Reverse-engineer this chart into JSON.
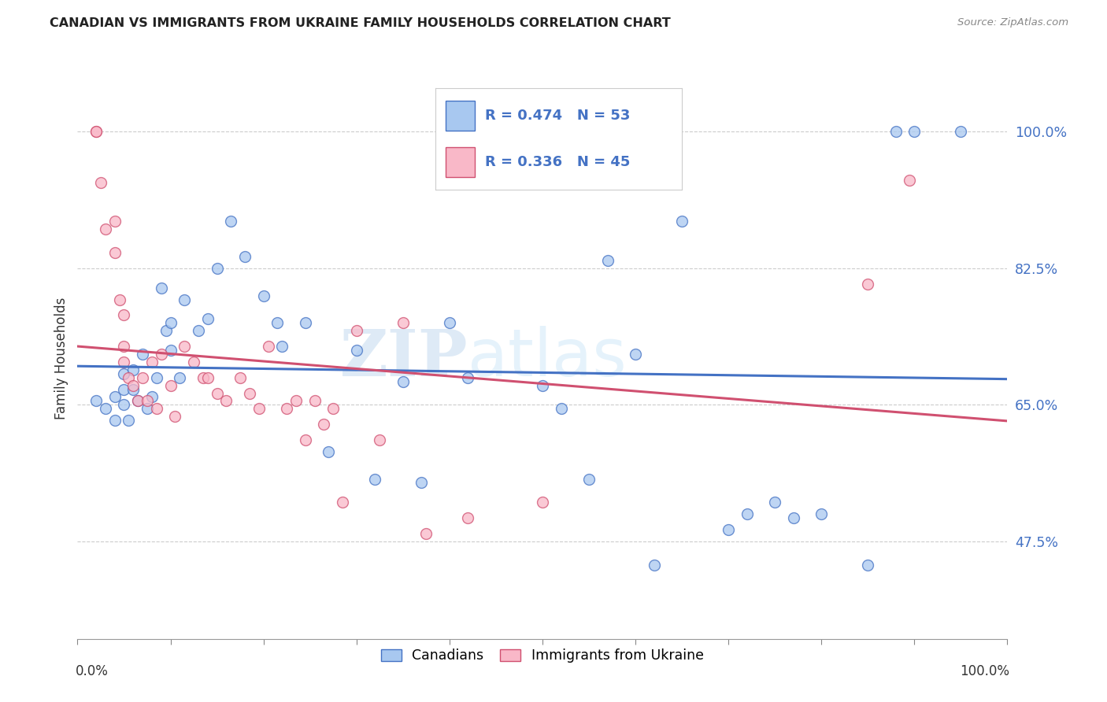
{
  "title": "CANADIAN VS IMMIGRANTS FROM UKRAINE FAMILY HOUSEHOLDS CORRELATION CHART",
  "source": "Source: ZipAtlas.com",
  "ylabel": "Family Households",
  "ytick_labels": [
    "100.0%",
    "82.5%",
    "65.0%",
    "47.5%"
  ],
  "ytick_values": [
    1.0,
    0.825,
    0.65,
    0.475
  ],
  "xlim": [
    0.0,
    1.0
  ],
  "ylim": [
    0.35,
    1.07
  ],
  "canadian_color": "#a8c8f0",
  "ukraine_color": "#f9b8c8",
  "canadian_line_color": "#4472c4",
  "ukraine_line_color": "#d05070",
  "canadian_R": 0.474,
  "canadian_N": 53,
  "ukraine_R": 0.336,
  "ukraine_N": 45,
  "legend_label_canadian": "Canadians",
  "legend_label_ukraine": "Immigrants from Ukraine",
  "watermark_zip": "ZIP",
  "watermark_atlas": "atlas",
  "canadian_x": [
    0.02,
    0.03,
    0.04,
    0.04,
    0.05,
    0.05,
    0.05,
    0.055,
    0.06,
    0.06,
    0.065,
    0.07,
    0.075,
    0.08,
    0.085,
    0.09,
    0.095,
    0.1,
    0.1,
    0.11,
    0.115,
    0.13,
    0.14,
    0.15,
    0.165,
    0.18,
    0.2,
    0.215,
    0.22,
    0.245,
    0.27,
    0.3,
    0.32,
    0.35,
    0.37,
    0.4,
    0.42,
    0.5,
    0.52,
    0.55,
    0.57,
    0.6,
    0.62,
    0.65,
    0.7,
    0.72,
    0.75,
    0.77,
    0.8,
    0.85,
    0.88,
    0.9,
    0.95
  ],
  "canadian_y": [
    0.655,
    0.645,
    0.66,
    0.63,
    0.69,
    0.67,
    0.65,
    0.63,
    0.695,
    0.67,
    0.655,
    0.715,
    0.645,
    0.66,
    0.685,
    0.8,
    0.745,
    0.72,
    0.755,
    0.685,
    0.785,
    0.745,
    0.76,
    0.825,
    0.885,
    0.84,
    0.79,
    0.755,
    0.725,
    0.755,
    0.59,
    0.72,
    0.555,
    0.68,
    0.55,
    0.755,
    0.685,
    0.675,
    0.645,
    0.555,
    0.835,
    0.715,
    0.445,
    0.885,
    0.49,
    0.51,
    0.525,
    0.505,
    0.51,
    0.445,
    1.0,
    1.0,
    1.0
  ],
  "ukraine_x": [
    0.02,
    0.02,
    0.025,
    0.03,
    0.04,
    0.04,
    0.045,
    0.05,
    0.05,
    0.05,
    0.055,
    0.06,
    0.065,
    0.07,
    0.075,
    0.08,
    0.085,
    0.09,
    0.1,
    0.105,
    0.115,
    0.125,
    0.135,
    0.14,
    0.15,
    0.16,
    0.175,
    0.185,
    0.195,
    0.205,
    0.225,
    0.235,
    0.245,
    0.255,
    0.265,
    0.275,
    0.285,
    0.3,
    0.325,
    0.35,
    0.375,
    0.42,
    0.5,
    0.85,
    0.895
  ],
  "ukraine_y": [
    1.0,
    1.0,
    0.935,
    0.875,
    0.885,
    0.845,
    0.785,
    0.765,
    0.725,
    0.705,
    0.685,
    0.675,
    0.655,
    0.685,
    0.655,
    0.705,
    0.645,
    0.715,
    0.675,
    0.635,
    0.725,
    0.705,
    0.685,
    0.685,
    0.665,
    0.655,
    0.685,
    0.665,
    0.645,
    0.725,
    0.645,
    0.655,
    0.605,
    0.655,
    0.625,
    0.645,
    0.525,
    0.745,
    0.605,
    0.755,
    0.485,
    0.505,
    0.525,
    0.805,
    0.938
  ]
}
